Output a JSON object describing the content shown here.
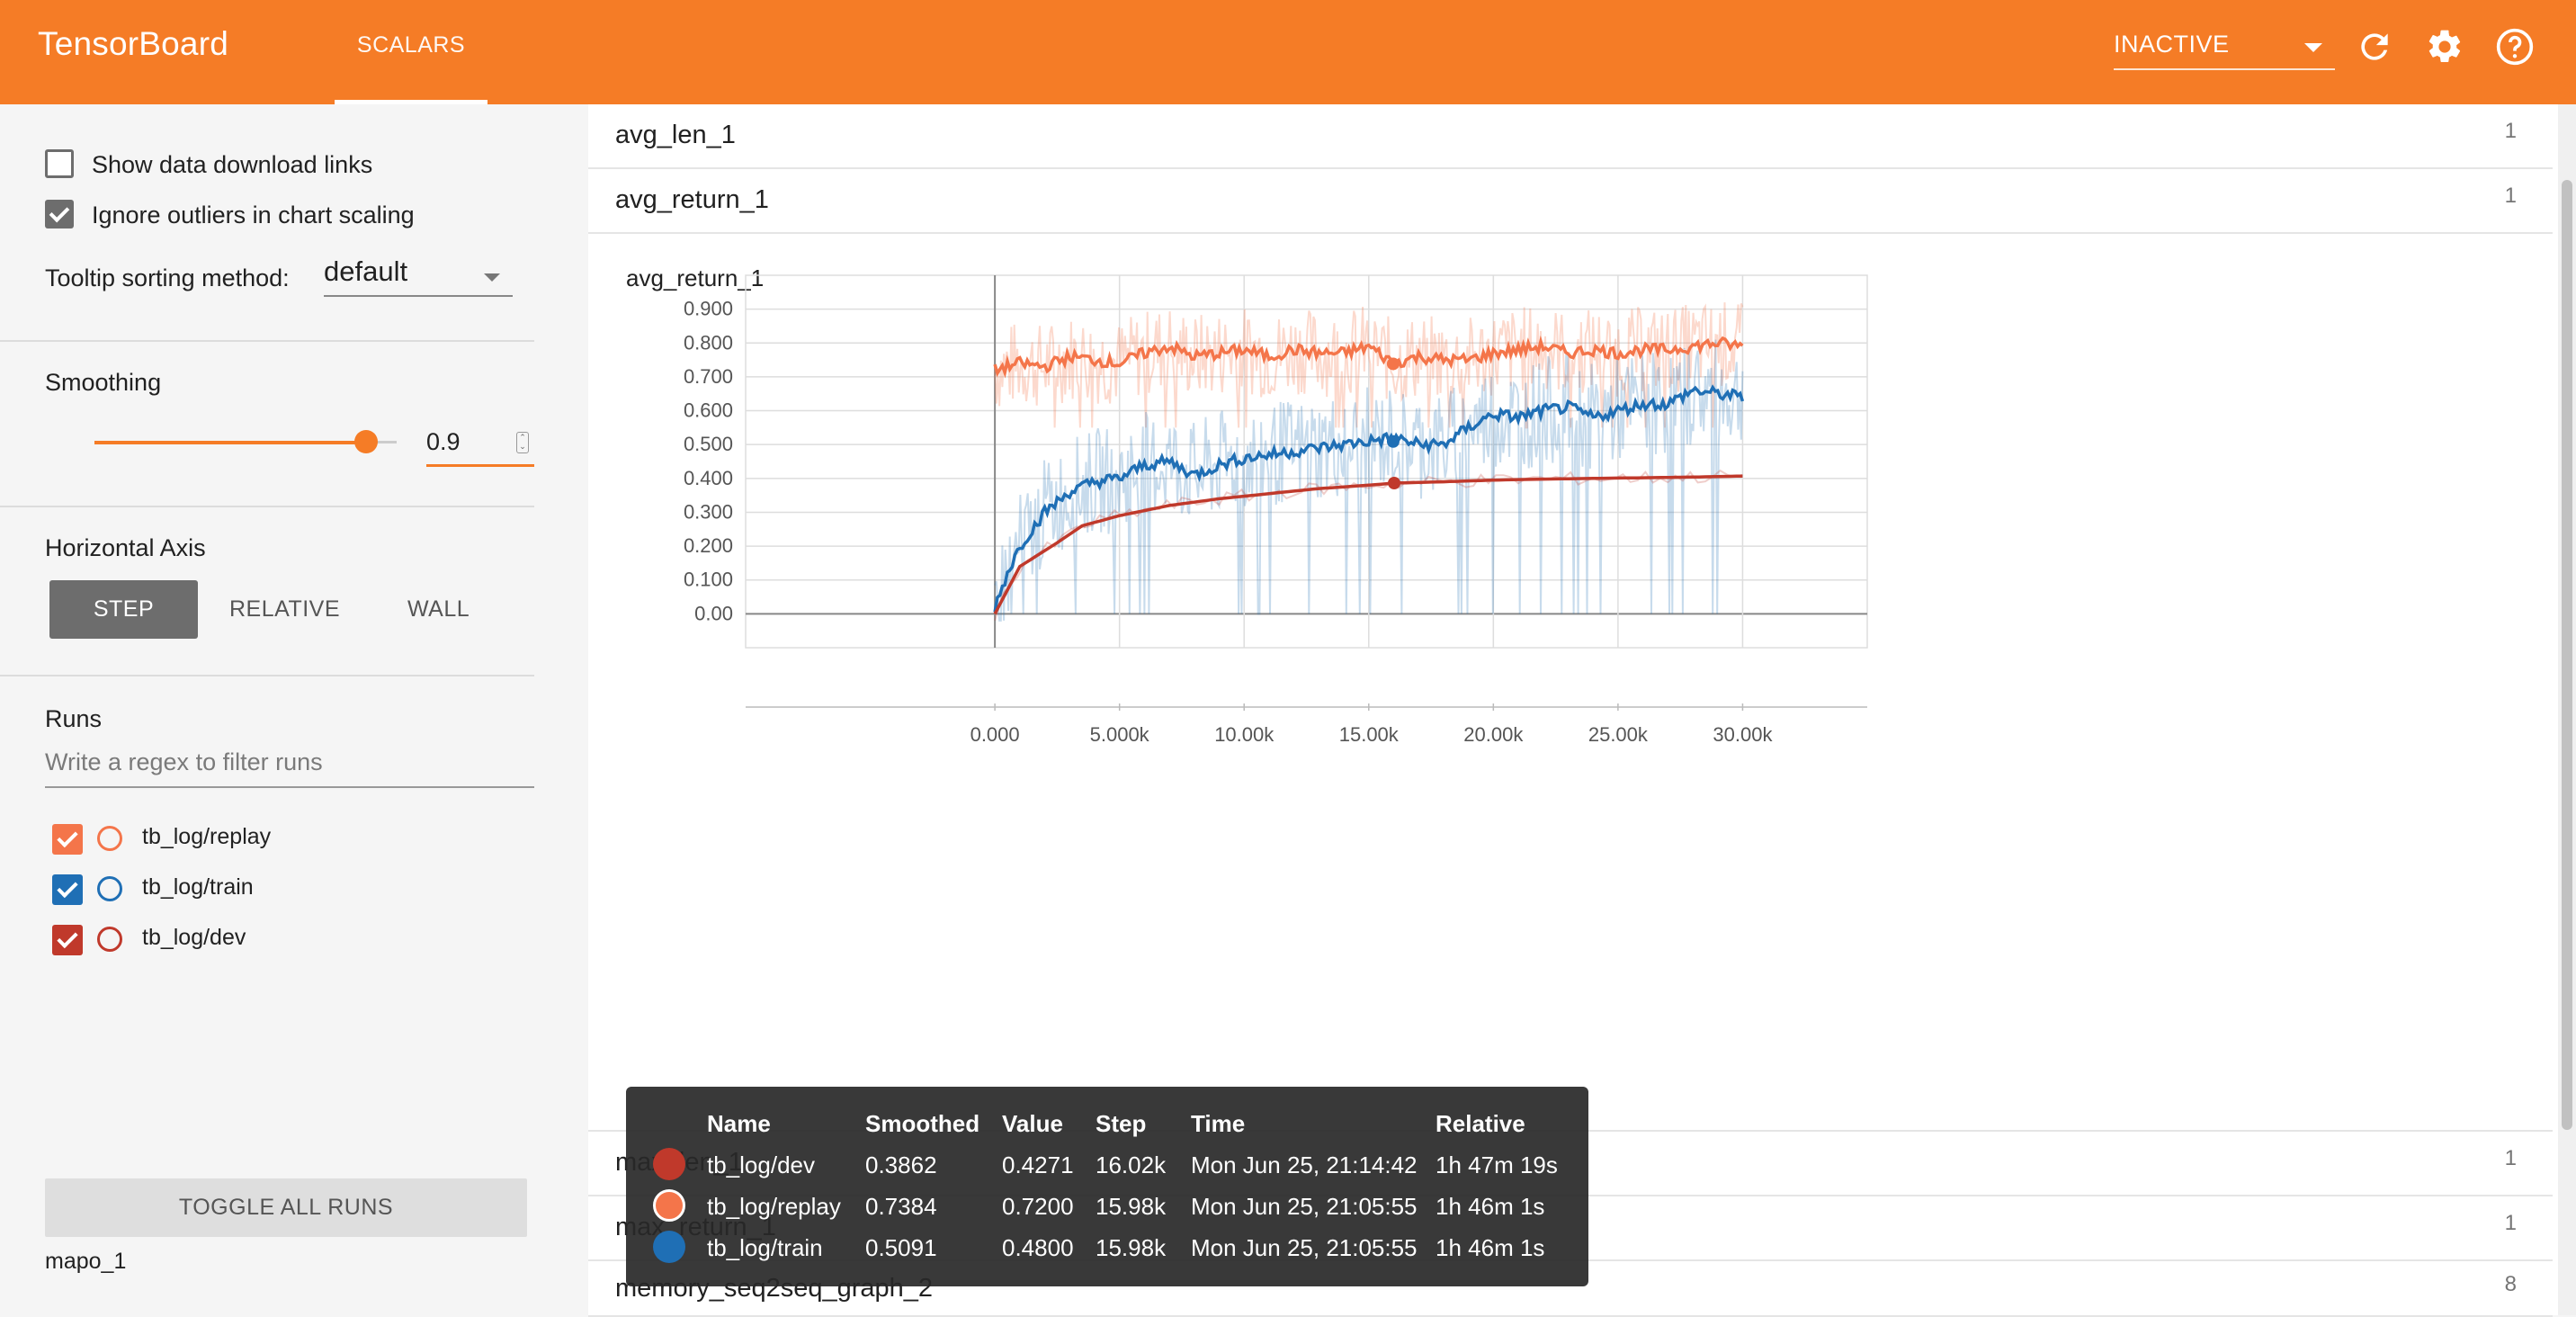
{
  "header": {
    "title": "TensorBoard",
    "tab_label": "SCALARS",
    "status_select": "INACTIVE",
    "icons": [
      "refresh-icon",
      "gear-icon",
      "help-icon"
    ]
  },
  "sidebar": {
    "show_download_label": "Show data download links",
    "show_download_checked": false,
    "ignore_outliers_label": "Ignore outliers in chart scaling",
    "ignore_outliers_checked": true,
    "tooltip_sort_label": "Tooltip sorting method:",
    "tooltip_sort_value": "default",
    "smoothing_label": "Smoothing",
    "smoothing_value": "0.9",
    "smoothing_fraction": 0.9,
    "horizontal_axis_label": "Horizontal Axis",
    "axis_options": [
      "STEP",
      "RELATIVE",
      "WALL"
    ],
    "axis_selected": "STEP",
    "runs_label": "Runs",
    "runs_filter_placeholder": "Write a regex to filter runs",
    "runs": [
      {
        "name": "tb_log/replay",
        "color": "#f4754a",
        "checked": true
      },
      {
        "name": "tb_log/train",
        "color": "#1f6fb5",
        "checked": true
      },
      {
        "name": "tb_log/dev",
        "color": "#c0392b",
        "checked": true
      }
    ],
    "toggle_all_label": "TOGGLE ALL RUNS",
    "footer_label": "mapo_1"
  },
  "main": {
    "groups_top": [
      {
        "name": "avg_len_1",
        "count": "1"
      },
      {
        "name": "avg_return_1",
        "count": "1"
      }
    ],
    "groups_bottom": [
      {
        "name": "max_len_1",
        "count": "1"
      },
      {
        "name": "max_return_1",
        "count": "1"
      },
      {
        "name": "memory_seq2seq_graph_2",
        "count": "8"
      }
    ]
  },
  "chart_data": {
    "type": "line",
    "title": "avg_return_1",
    "xlabel": "",
    "ylabel": "",
    "xlim": [
      -10000,
      35000
    ],
    "ylim": [
      -0.1,
      1.0
    ],
    "x_ticks": [
      "0.000",
      "5.000k",
      "10.00k",
      "15.00k",
      "20.00k",
      "25.00k",
      "30.00k"
    ],
    "x_tick_values": [
      0,
      5000,
      10000,
      15000,
      20000,
      25000,
      30000
    ],
    "y_ticks": [
      "0.00",
      "0.100",
      "0.200",
      "0.300",
      "0.400",
      "0.500",
      "0.600",
      "0.700",
      "0.800",
      "0.900"
    ],
    "y_tick_values": [
      0,
      0.1,
      0.2,
      0.3,
      0.4,
      0.5,
      0.6,
      0.7,
      0.8,
      0.9
    ],
    "grid": true,
    "series": [
      {
        "name": "tb_log/replay",
        "color": "#f4754a",
        "x": [
          0,
          1000,
          2000,
          3000,
          4000,
          5000,
          6000,
          7000,
          8000,
          9000,
          10000,
          11000,
          12000,
          13000,
          14000,
          15000,
          16000,
          17000,
          18000,
          19000,
          20000,
          21000,
          22000,
          23000,
          24000,
          25000,
          26000,
          27000,
          28000,
          29000,
          30000
        ],
        "smoothed": [
          0.72,
          0.74,
          0.73,
          0.76,
          0.75,
          0.74,
          0.77,
          0.79,
          0.76,
          0.77,
          0.78,
          0.76,
          0.78,
          0.77,
          0.77,
          0.79,
          0.74,
          0.76,
          0.75,
          0.75,
          0.77,
          0.78,
          0.79,
          0.77,
          0.78,
          0.77,
          0.78,
          0.78,
          0.79,
          0.8,
          0.79
        ]
      },
      {
        "name": "tb_log/train",
        "color": "#1f6fb5",
        "x": [
          0,
          500,
          1000,
          2000,
          3000,
          4000,
          5000,
          6000,
          7000,
          8000,
          9000,
          10000,
          11000,
          12000,
          13000,
          14000,
          15000,
          16000,
          17000,
          18000,
          19000,
          20000,
          21000,
          22000,
          23000,
          24000,
          25000,
          26000,
          27000,
          28000,
          29000,
          30000
        ],
        "smoothed": [
          0.02,
          0.12,
          0.2,
          0.3,
          0.36,
          0.39,
          0.4,
          0.44,
          0.45,
          0.41,
          0.44,
          0.46,
          0.47,
          0.48,
          0.49,
          0.5,
          0.51,
          0.52,
          0.5,
          0.5,
          0.55,
          0.59,
          0.58,
          0.6,
          0.61,
          0.58,
          0.6,
          0.62,
          0.62,
          0.66,
          0.65,
          0.64
        ]
      },
      {
        "name": "tb_log/dev",
        "color": "#c0392b",
        "x": [
          0,
          1000,
          2500,
          3500,
          5000,
          7000,
          9000,
          11000,
          13000,
          15000,
          16020,
          18000,
          20000,
          22000,
          24000,
          26000,
          28000,
          30000
        ],
        "smoothed": [
          0.0,
          0.14,
          0.21,
          0.26,
          0.29,
          0.32,
          0.34,
          0.355,
          0.37,
          0.38,
          0.3862,
          0.39,
          0.395,
          0.398,
          0.4,
          0.402,
          0.404,
          0.407
        ]
      }
    ],
    "hover_step": 16020,
    "controls": [
      "fit-domain-icon",
      "log-scale-icon",
      "zoom-region-icon"
    ]
  },
  "tooltip": {
    "columns": [
      "Name",
      "Smoothed",
      "Value",
      "Step",
      "Time",
      "Relative"
    ],
    "rows": [
      {
        "name": "tb_log/dev",
        "smoothed": "0.3862",
        "value": "0.4271",
        "step": "16.02k",
        "time": "Mon Jun 25, 21:14:42",
        "relative": "1h 47m 19s",
        "color": "#c0392b"
      },
      {
        "name": "tb_log/replay",
        "smoothed": "0.7384",
        "value": "0.7200",
        "step": "15.98k",
        "time": "Mon Jun 25, 21:05:55",
        "relative": "1h 46m 1s",
        "color": "#f4754a"
      },
      {
        "name": "tb_log/train",
        "smoothed": "0.5091",
        "value": "0.4800",
        "step": "15.98k",
        "time": "Mon Jun 25, 21:05:55",
        "relative": "1h 46m 1s",
        "color": "#1f6fb5"
      }
    ]
  }
}
